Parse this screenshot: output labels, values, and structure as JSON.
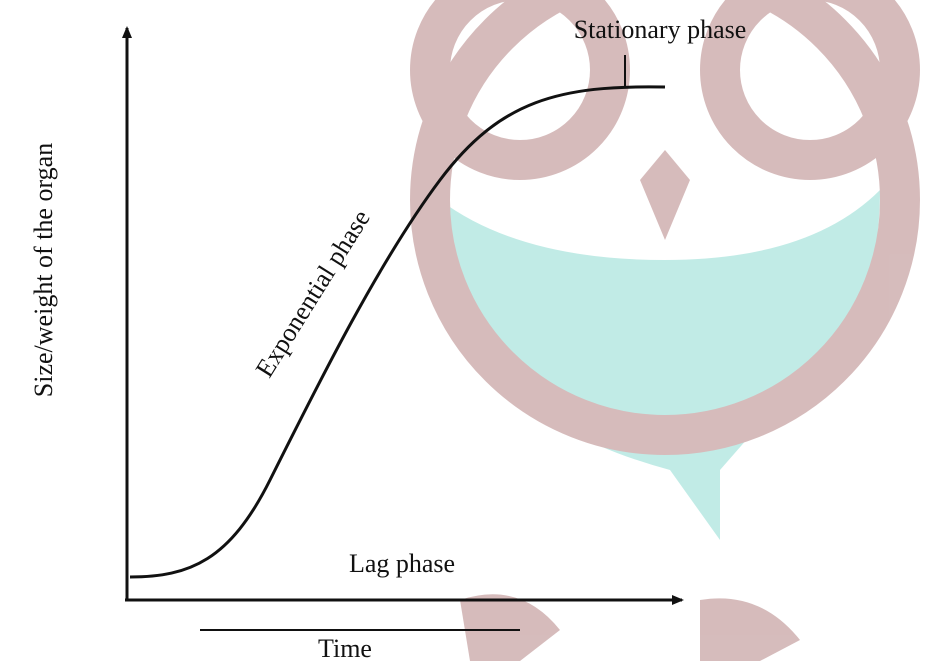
{
  "axes": {
    "y_label": "Size/weight of the organ",
    "x_label": "Time"
  },
  "phases": {
    "stationary": "Stationary phase",
    "exponential": "Exponential phase",
    "lag": "Lag phase"
  }
}
